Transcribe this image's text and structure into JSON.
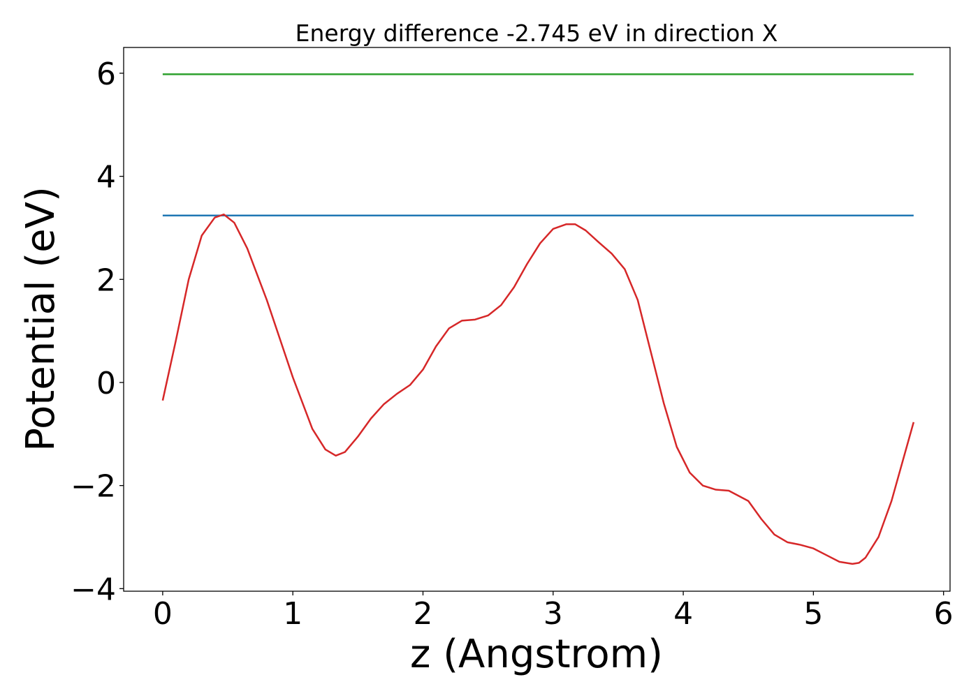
{
  "chart_data": {
    "type": "line",
    "title": "Energy difference -2.745 eV in direction X",
    "xlabel": "z (Angstrom)",
    "ylabel": "Potential (eV)",
    "xlim": [
      -0.3,
      6.05
    ],
    "ylim": [
      -4.05,
      6.5
    ],
    "xticks": [
      0,
      1,
      2,
      3,
      4,
      5,
      6
    ],
    "yticks": [
      -4,
      -2,
      0,
      2,
      4,
      6
    ],
    "xtick_labels": [
      "0",
      "1",
      "2",
      "3",
      "4",
      "5",
      "6"
    ],
    "ytick_labels": [
      "−4",
      "−2",
      "0",
      "2",
      "4",
      "6"
    ],
    "grid": false,
    "legend": "none",
    "series": [
      {
        "color": "#2ca02c",
        "x": [
          0,
          5.77
        ],
        "y": [
          5.98,
          5.98
        ]
      },
      {
        "color": "#1f77b4",
        "x": [
          0,
          5.77
        ],
        "y": [
          3.24,
          3.24
        ]
      },
      {
        "color": "#d62728",
        "x": [
          0,
          0.1,
          0.2,
          0.3,
          0.4,
          0.47,
          0.55,
          0.65,
          0.8,
          1.0,
          1.15,
          1.25,
          1.33,
          1.4,
          1.5,
          1.6,
          1.7,
          1.8,
          1.9,
          2.0,
          2.1,
          2.2,
          2.3,
          2.4,
          2.5,
          2.6,
          2.7,
          2.8,
          2.9,
          3.0,
          3.1,
          3.17,
          3.25,
          3.35,
          3.45,
          3.55,
          3.65,
          3.75,
          3.85,
          3.95,
          4.05,
          4.15,
          4.25,
          4.35,
          4.5,
          4.6,
          4.7,
          4.8,
          4.9,
          5.0,
          5.1,
          5.2,
          5.3,
          5.35,
          5.4,
          5.5,
          5.6,
          5.7,
          5.77
        ],
        "y": [
          -0.35,
          0.8,
          2.0,
          2.85,
          3.2,
          3.26,
          3.1,
          2.6,
          1.6,
          0.1,
          -0.9,
          -1.3,
          -1.42,
          -1.35,
          -1.05,
          -0.7,
          -0.42,
          -0.22,
          -0.05,
          0.25,
          0.7,
          1.05,
          1.2,
          1.22,
          1.3,
          1.5,
          1.85,
          2.3,
          2.7,
          2.98,
          3.07,
          3.07,
          2.95,
          2.72,
          2.5,
          2.2,
          1.6,
          0.6,
          -0.4,
          -1.25,
          -1.75,
          -2.0,
          -2.08,
          -2.1,
          -2.3,
          -2.65,
          -2.95,
          -3.1,
          -3.15,
          -3.22,
          -3.35,
          -3.48,
          -3.52,
          -3.5,
          -3.4,
          -3.0,
          -2.3,
          -1.4,
          -0.77
        ]
      }
    ]
  }
}
